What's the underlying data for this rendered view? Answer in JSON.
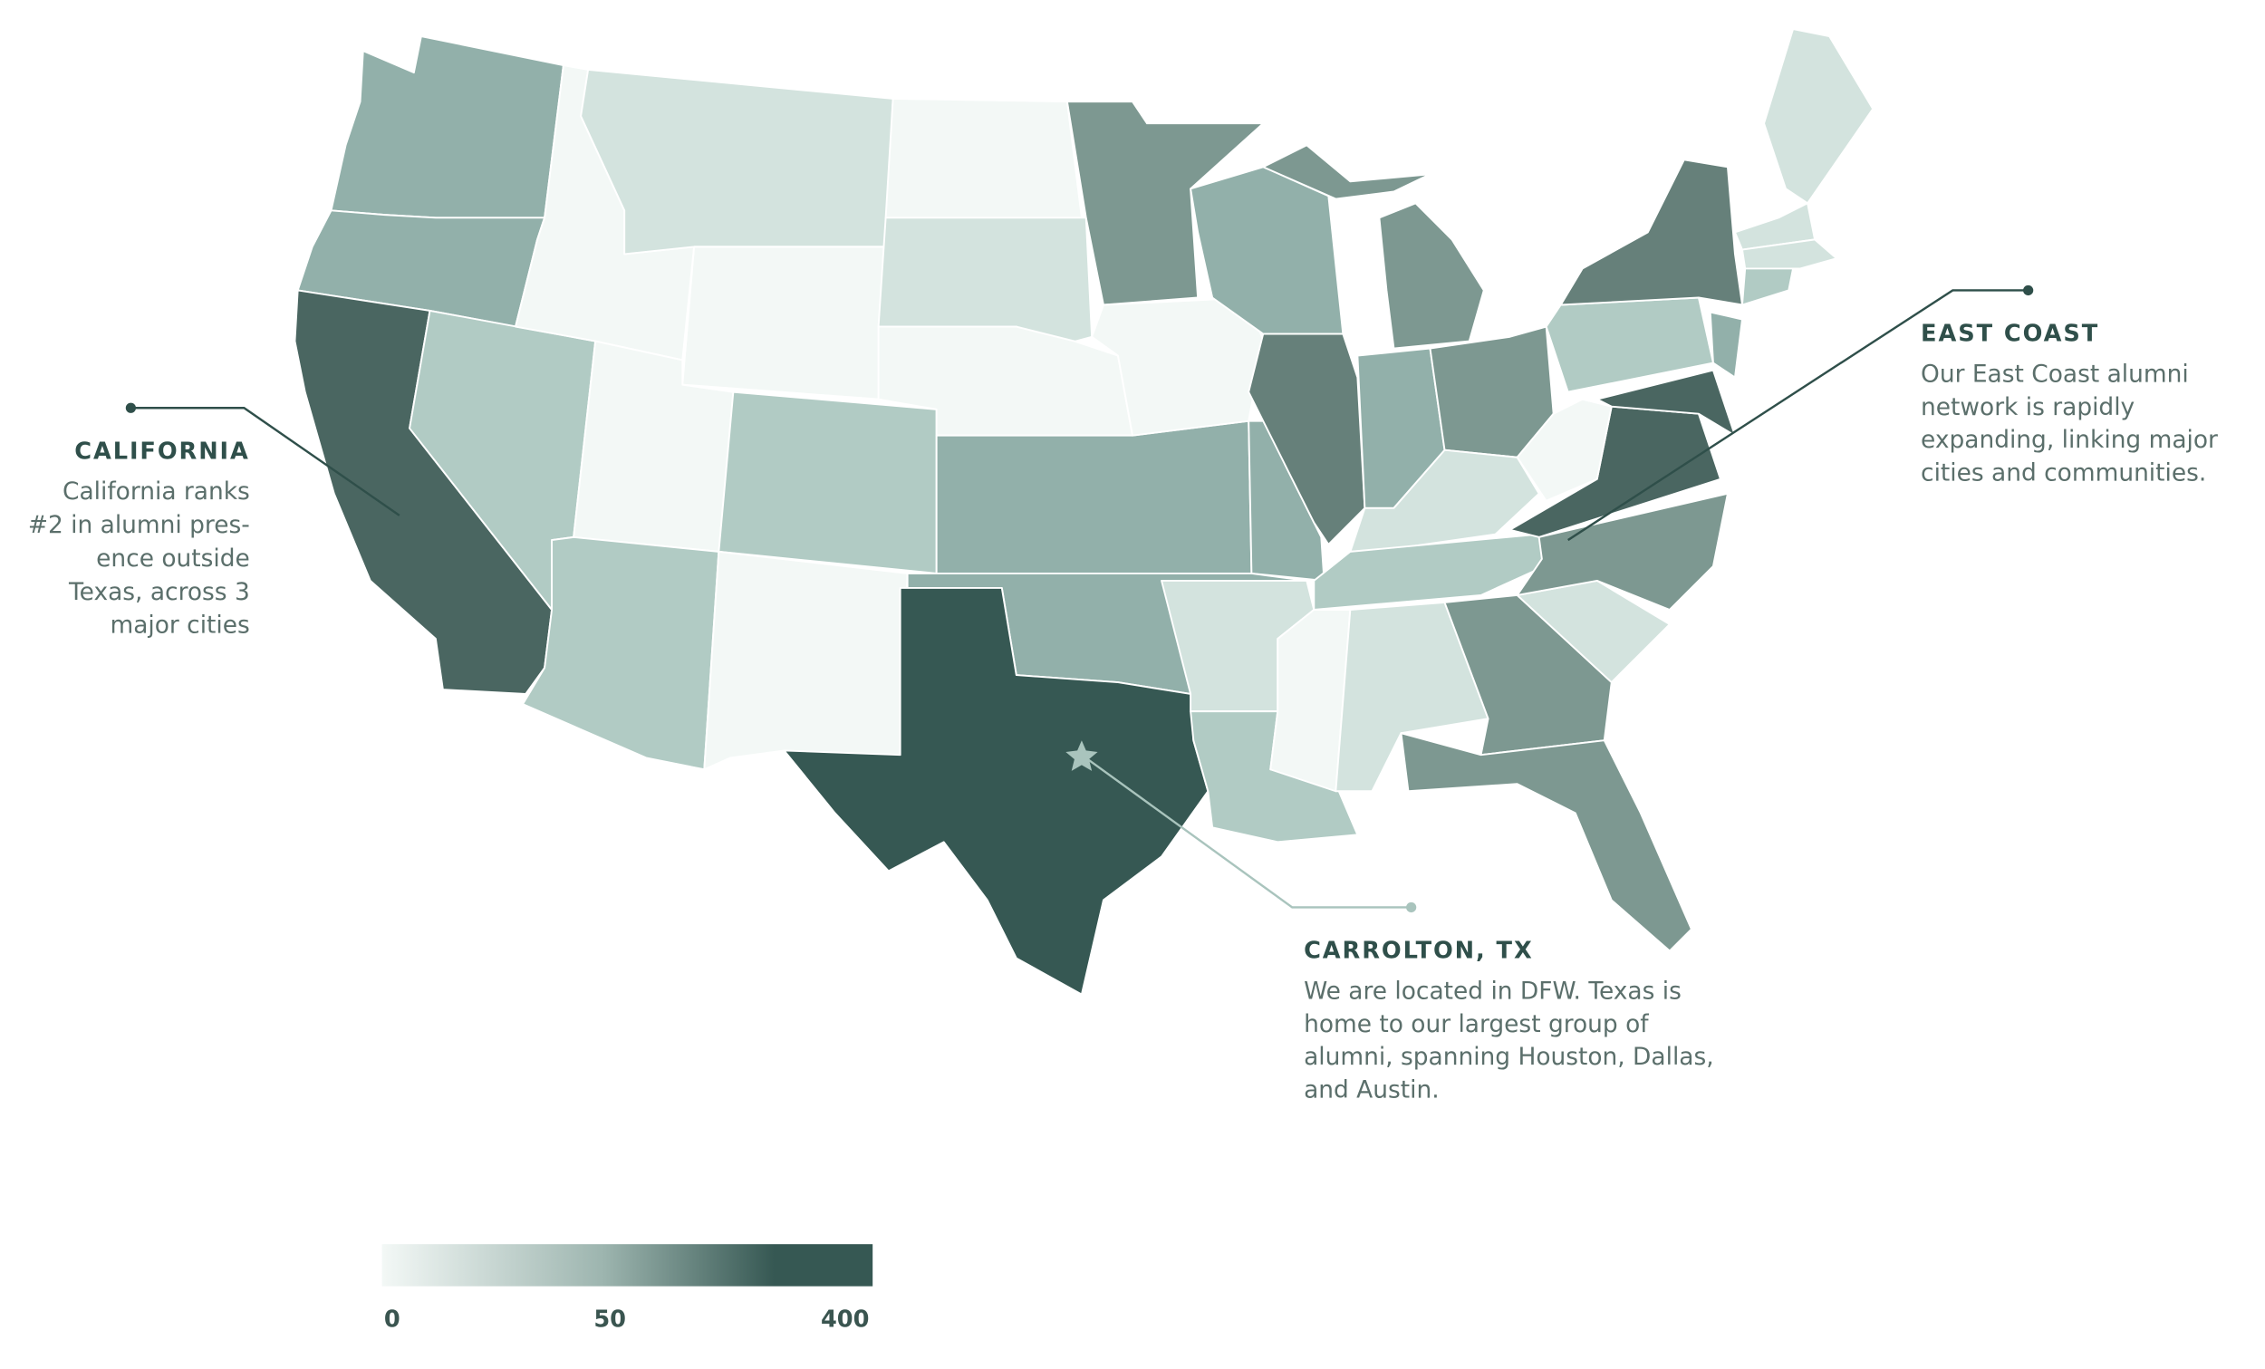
{
  "annotations": [
    {
      "title": "CALIFORNIA",
      "lines": [
        "California ranks",
        "#2 in alumni pres-",
        "ence outside",
        "Texas, across 3",
        "major cities"
      ]
    },
    {
      "title": "EAST COAST",
      "lines": [
        "Our East Coast alumni",
        "network is rapidly",
        "expanding, linking major",
        "cities and communities."
      ]
    },
    {
      "title": "CARROLTON, TX",
      "lines": [
        "We are located in DFW. Texas is",
        "home to our largest group of",
        "alumni, spanning Houston, Dallas,",
        "and Austin."
      ]
    }
  ],
  "legend": {
    "ticks": [
      0,
      50,
      400
    ]
  }
}
